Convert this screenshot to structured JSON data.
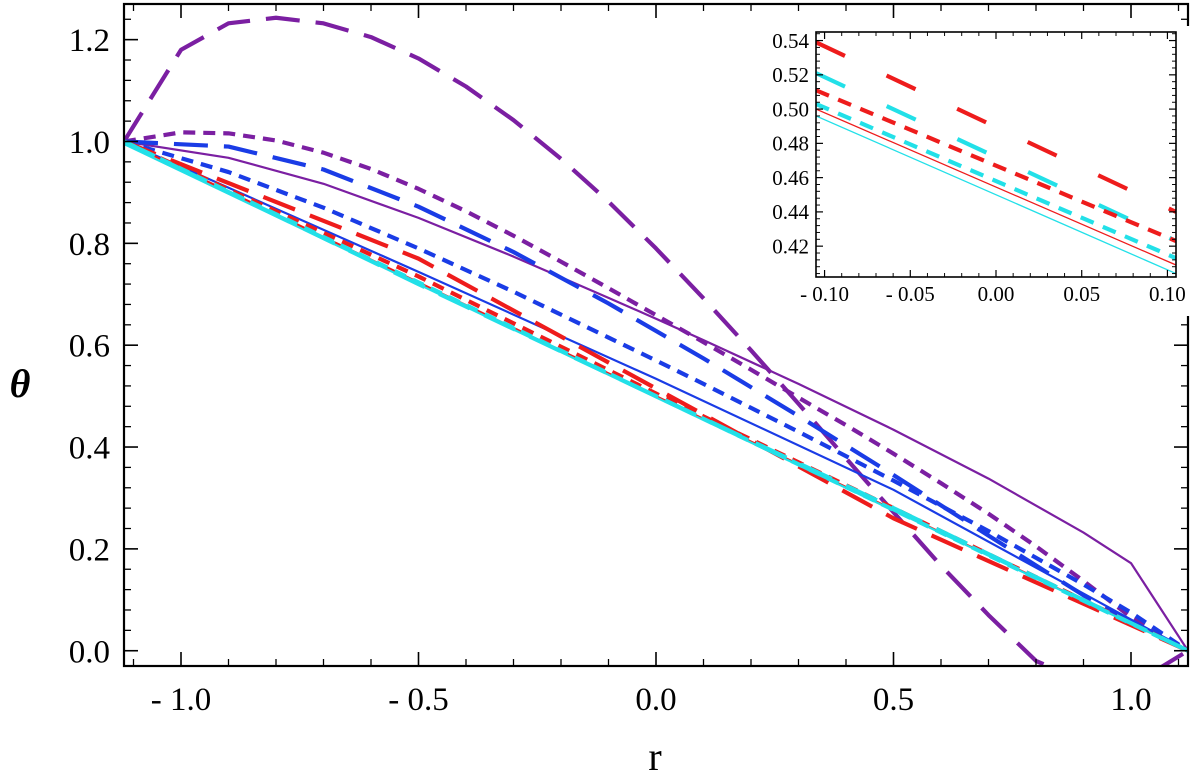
{
  "chart_data": [
    {
      "type": "line",
      "xlabel": "r",
      "ylabel": "θ",
      "xlim": [
        -1.12,
        1.12
      ],
      "ylim": [
        -0.03,
        1.27
      ],
      "x_ticks": [
        -1.0,
        -0.5,
        0.0,
        0.5,
        1.0
      ],
      "x_tick_labels": [
        "- 1.0",
        "- 0.5",
        "0.0",
        "0.5",
        "1.0"
      ],
      "y_ticks": [
        0.0,
        0.2,
        0.4,
        0.6,
        0.8,
        1.0,
        1.2
      ],
      "y_tick_labels": [
        "0.0",
        "0.2",
        "0.4",
        "0.6",
        "0.8",
        "1.0",
        "1.2"
      ],
      "grid": false,
      "legend": "none",
      "series": [
        {
          "color": "#7b1fa2",
          "style": "long-dash",
          "x": [
            -1.12,
            -1.0,
            -0.9,
            -0.8,
            -0.7,
            -0.6,
            -0.5,
            -0.4,
            -0.3,
            -0.2,
            -0.1,
            0.0,
            0.1,
            0.2,
            0.3,
            0.4,
            0.5,
            0.6,
            0.7,
            0.8,
            0.9,
            1.0,
            1.05,
            1.12
          ],
          "y": [
            1.0,
            1.18,
            1.232,
            1.243,
            1.232,
            1.205,
            1.163,
            1.108,
            1.042,
            0.966,
            0.882,
            0.79,
            0.692,
            0.59,
            0.485,
            0.378,
            0.272,
            0.167,
            0.07,
            -0.02,
            -0.06,
            -0.06,
            -0.04,
            0.0
          ]
        },
        {
          "color": "#7b1fa2",
          "style": "short-dash",
          "x": [
            -1.12,
            -1.0,
            -0.9,
            -0.8,
            -0.7,
            -0.6,
            -0.5,
            -0.4,
            -0.3,
            -0.2,
            -0.1,
            0.0,
            0.1,
            0.2,
            0.3,
            0.4,
            0.5,
            0.6,
            0.7,
            0.8,
            0.9,
            1.0,
            1.05,
            1.12
          ],
          "y": [
            1.0,
            1.018,
            1.016,
            1.002,
            0.978,
            0.946,
            0.907,
            0.863,
            0.815,
            0.764,
            0.712,
            0.659,
            0.606,
            0.552,
            0.497,
            0.443,
            0.387,
            0.329,
            0.269,
            0.205,
            0.137,
            0.066,
            0.04,
            0.0
          ]
        },
        {
          "color": "#7b1fa2",
          "style": "solid",
          "x": [
            -1.12,
            -0.9,
            -0.7,
            -0.5,
            -0.3,
            -0.1,
            0.0,
            0.1,
            0.3,
            0.5,
            0.7,
            0.9,
            1.0,
            1.12
          ],
          "y": [
            1.0,
            0.968,
            0.917,
            0.85,
            0.774,
            0.693,
            0.652,
            0.61,
            0.524,
            0.434,
            0.338,
            0.232,
            0.172,
            0.0
          ]
        },
        {
          "color": "#1a3ce6",
          "style": "long-dash",
          "x": [
            -1.12,
            -0.9,
            -0.7,
            -0.5,
            -0.3,
            -0.1,
            0.0,
            0.1,
            0.3,
            0.5,
            0.7,
            0.9,
            1.0,
            1.12
          ],
          "y": [
            1.0,
            0.99,
            0.945,
            0.872,
            0.783,
            0.682,
            0.628,
            0.574,
            0.461,
            0.345,
            0.226,
            0.109,
            0.058,
            0.0
          ]
        },
        {
          "color": "#1a3ce6",
          "style": "short-dash",
          "x": [
            -1.12,
            -0.9,
            -0.7,
            -0.5,
            -0.3,
            -0.1,
            0.0,
            0.1,
            0.3,
            0.5,
            0.7,
            0.9,
            1.0,
            1.12
          ],
          "y": [
            1.0,
            0.94,
            0.87,
            0.79,
            0.705,
            0.615,
            0.57,
            0.524,
            0.43,
            0.334,
            0.235,
            0.13,
            0.075,
            0.0
          ]
        },
        {
          "color": "#1a3ce6",
          "style": "solid",
          "x": [
            -1.12,
            -0.5,
            0.0,
            0.5,
            1.12
          ],
          "y": [
            1.0,
            0.744,
            0.534,
            0.316,
            0.0
          ]
        },
        {
          "color": "#ee1c1c",
          "style": "long-dash",
          "x": [
            -1.12,
            -0.5,
            0.0,
            0.5,
            1.12
          ],
          "y": [
            1.0,
            0.77,
            0.515,
            0.26,
            0.0
          ]
        },
        {
          "color": "#ee1c1c",
          "style": "short-dash",
          "x": [
            -1.12,
            -0.5,
            0.0,
            0.5,
            1.12
          ],
          "y": [
            1.0,
            0.735,
            0.505,
            0.28,
            0.0
          ]
        },
        {
          "color": "#ee1c1c",
          "style": "solid",
          "x": [
            -1.12,
            1.12
          ],
          "y": [
            1.0,
            0.0
          ]
        },
        {
          "color": "#22e0e8",
          "style": "long-dash",
          "x": [
            -1.12,
            -0.5,
            0.0,
            0.5,
            1.12
          ],
          "y": [
            1.0,
            0.72,
            0.5,
            0.28,
            0.0
          ]
        },
        {
          "color": "#22e0e8",
          "style": "short-dash",
          "x": [
            -1.12,
            1.12
          ],
          "y": [
            1.0,
            0.0
          ]
        },
        {
          "color": "#22e0e8",
          "style": "solid",
          "x": [
            -1.12,
            1.12
          ],
          "y": [
            0.995,
            0.0
          ]
        }
      ]
    },
    {
      "type": "line",
      "xlabel": "",
      "ylabel": "",
      "xlim": [
        -0.105,
        0.105
      ],
      "ylim": [
        0.402,
        0.545
      ],
      "x_ticks": [
        -0.1,
        -0.05,
        0.0,
        0.05,
        0.1
      ],
      "x_tick_labels": [
        "- 0.10",
        "- 0.05",
        "0.00",
        "0.05",
        "0.10"
      ],
      "y_ticks": [
        0.42,
        0.44,
        0.46,
        0.48,
        0.5,
        0.52,
        0.54
      ],
      "y_tick_labels": [
        "0.42",
        "0.44",
        "0.46",
        "0.48",
        "0.50",
        "0.52",
        "0.54"
      ],
      "grid": false,
      "legend": "none",
      "series": [
        {
          "color": "#ee1c1c",
          "style": "long-dash",
          "x": [
            -0.105,
            0.105
          ],
          "y": [
            0.539,
            0.44
          ]
        },
        {
          "color": "#22e0e8",
          "style": "long-dash",
          "x": [
            -0.105,
            0.105
          ],
          "y": [
            0.521,
            0.423
          ]
        },
        {
          "color": "#ee1c1c",
          "style": "short-dash",
          "x": [
            -0.105,
            0.105
          ],
          "y": [
            0.511,
            0.423
          ]
        },
        {
          "color": "#22e0e8",
          "style": "short-dash",
          "x": [
            -0.105,
            0.105
          ],
          "y": [
            0.503,
            0.413
          ]
        },
        {
          "color": "#ee1c1c",
          "style": "solid",
          "x": [
            -0.105,
            0.105
          ],
          "y": [
            0.5,
            0.409
          ]
        },
        {
          "color": "#22e0e8",
          "style": "solid",
          "x": [
            -0.105,
            0.105
          ],
          "y": [
            0.496,
            0.404
          ]
        }
      ]
    }
  ]
}
